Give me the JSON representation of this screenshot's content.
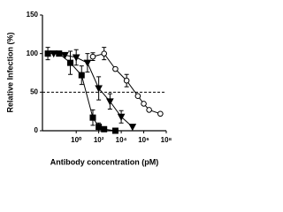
{
  "chart_data": {
    "type": "scatter",
    "xlabel": "Antibody concentration (pM)",
    "ylabel": "Relative Infection (%)",
    "xscale": "log",
    "xlim": [
      0.001,
      100000000
    ],
    "xticks": [
      {
        "value": 1,
        "label": "10⁰"
      },
      {
        "value": 100,
        "label": "10²"
      },
      {
        "value": 10000,
        "label": "10⁴"
      },
      {
        "value": 1000000,
        "label": "10⁶"
      },
      {
        "value": 100000000,
        "label": "10⁸"
      }
    ],
    "ylim": [
      0,
      150
    ],
    "yticks": [
      0,
      50,
      100,
      150
    ],
    "reference_line": 50,
    "series": [
      {
        "marker": "square",
        "filled": true,
        "color": "#000000",
        "x": [
          0.003,
          0.03,
          0.3,
          3,
          30,
          100,
          300,
          3000
        ],
        "values": [
          100,
          100,
          88,
          72,
          17,
          5,
          2,
          0
        ],
        "errors": [
          8,
          null,
          15,
          12,
          10,
          5,
          null,
          null
        ]
      },
      {
        "marker": "triangle-down",
        "filled": true,
        "color": "#000000",
        "x": [
          0.01,
          0.1,
          1,
          10,
          100,
          1000,
          10000,
          100000
        ],
        "values": [
          100,
          98,
          95,
          88,
          55,
          38,
          18,
          5
        ],
        "errors": [
          null,
          null,
          10,
          12,
          15,
          10,
          8,
          null
        ]
      },
      {
        "marker": "circle",
        "filled": false,
        "color": "#000000",
        "x": [
          30,
          300,
          3000,
          30000,
          300000,
          1000000,
          3000000,
          30000000
        ],
        "values": [
          96,
          100,
          80,
          65,
          45,
          35,
          27,
          22
        ],
        "errors": [
          5,
          8,
          null,
          8,
          null,
          null,
          null,
          null
        ]
      }
    ]
  }
}
